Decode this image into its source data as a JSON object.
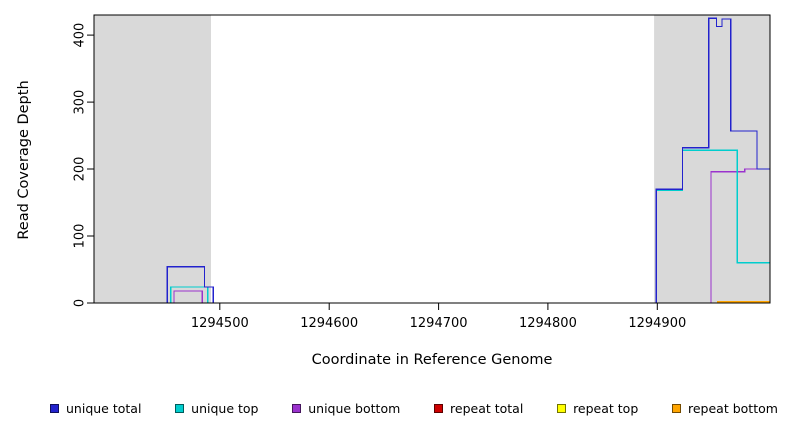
{
  "legend": {
    "items": [
      {
        "label": "unique total",
        "color": "#2222CD"
      },
      {
        "label": "unique top",
        "color": "#00CDCD"
      },
      {
        "label": "unique bottom",
        "color": "#9A32CD"
      },
      {
        "label": "repeat total",
        "color": "#CD0000"
      },
      {
        "label": "repeat top",
        "color": "#FFFF00"
      },
      {
        "label": "repeat bottom",
        "color": "#FFA500"
      }
    ]
  },
  "chart_data": {
    "type": "line",
    "style": "step-after-coverage-plot",
    "title": "",
    "xlabel": "Coordinate in Reference Genome",
    "ylabel": "Read Coverage Depth",
    "xlim": [
      1294385,
      1295003
    ],
    "ylim": [
      0,
      430
    ],
    "x_ticks": [
      1294500,
      1294600,
      1294700,
      1294800,
      1294900
    ],
    "y_ticks": [
      0,
      100,
      200,
      300,
      400
    ],
    "grid": false,
    "legend_position": "bottom",
    "shade_color": "#D9D9D9",
    "shaded_regions": [
      [
        1294385,
        1294492
      ],
      [
        1294897,
        1295003
      ]
    ],
    "series": [
      {
        "name": "unique total",
        "color": "#2222CD",
        "points": [
          [
            1294385,
            0
          ],
          [
            1294452,
            54
          ],
          [
            1294486,
            24
          ],
          [
            1294494,
            0
          ],
          [
            1294899,
            170
          ],
          [
            1294923,
            232
          ],
          [
            1294947,
            425
          ],
          [
            1294954,
            413
          ],
          [
            1294959,
            424
          ],
          [
            1294967,
            257
          ],
          [
            1294991,
            200
          ],
          [
            1295003,
            200
          ]
        ]
      },
      {
        "name": "unique top",
        "color": "#00CDCD",
        "points": [
          [
            1294385,
            0
          ],
          [
            1294455,
            24
          ],
          [
            1294489,
            0
          ],
          [
            1294899,
            168
          ],
          [
            1294923,
            228
          ],
          [
            1294973,
            60
          ],
          [
            1295003,
            60
          ]
        ]
      },
      {
        "name": "unique bottom",
        "color": "#9A32CD",
        "points": [
          [
            1294385,
            0
          ],
          [
            1294458,
            18
          ],
          [
            1294484,
            0
          ],
          [
            1294949,
            196
          ],
          [
            1294980,
            200
          ],
          [
            1295003,
            200
          ]
        ]
      },
      {
        "name": "repeat total",
        "color": "#CD0000",
        "points": [
          [
            1294385,
            0
          ],
          [
            1295003,
            0
          ]
        ]
      },
      {
        "name": "repeat top",
        "color": "#FFFF00",
        "points": [
          [
            1294385,
            0
          ],
          [
            1295003,
            0
          ]
        ]
      },
      {
        "name": "repeat bottom",
        "color": "#FFA500",
        "points": [
          [
            1294385,
            0
          ],
          [
            1294955,
            2
          ],
          [
            1295003,
            2
          ]
        ]
      }
    ]
  }
}
